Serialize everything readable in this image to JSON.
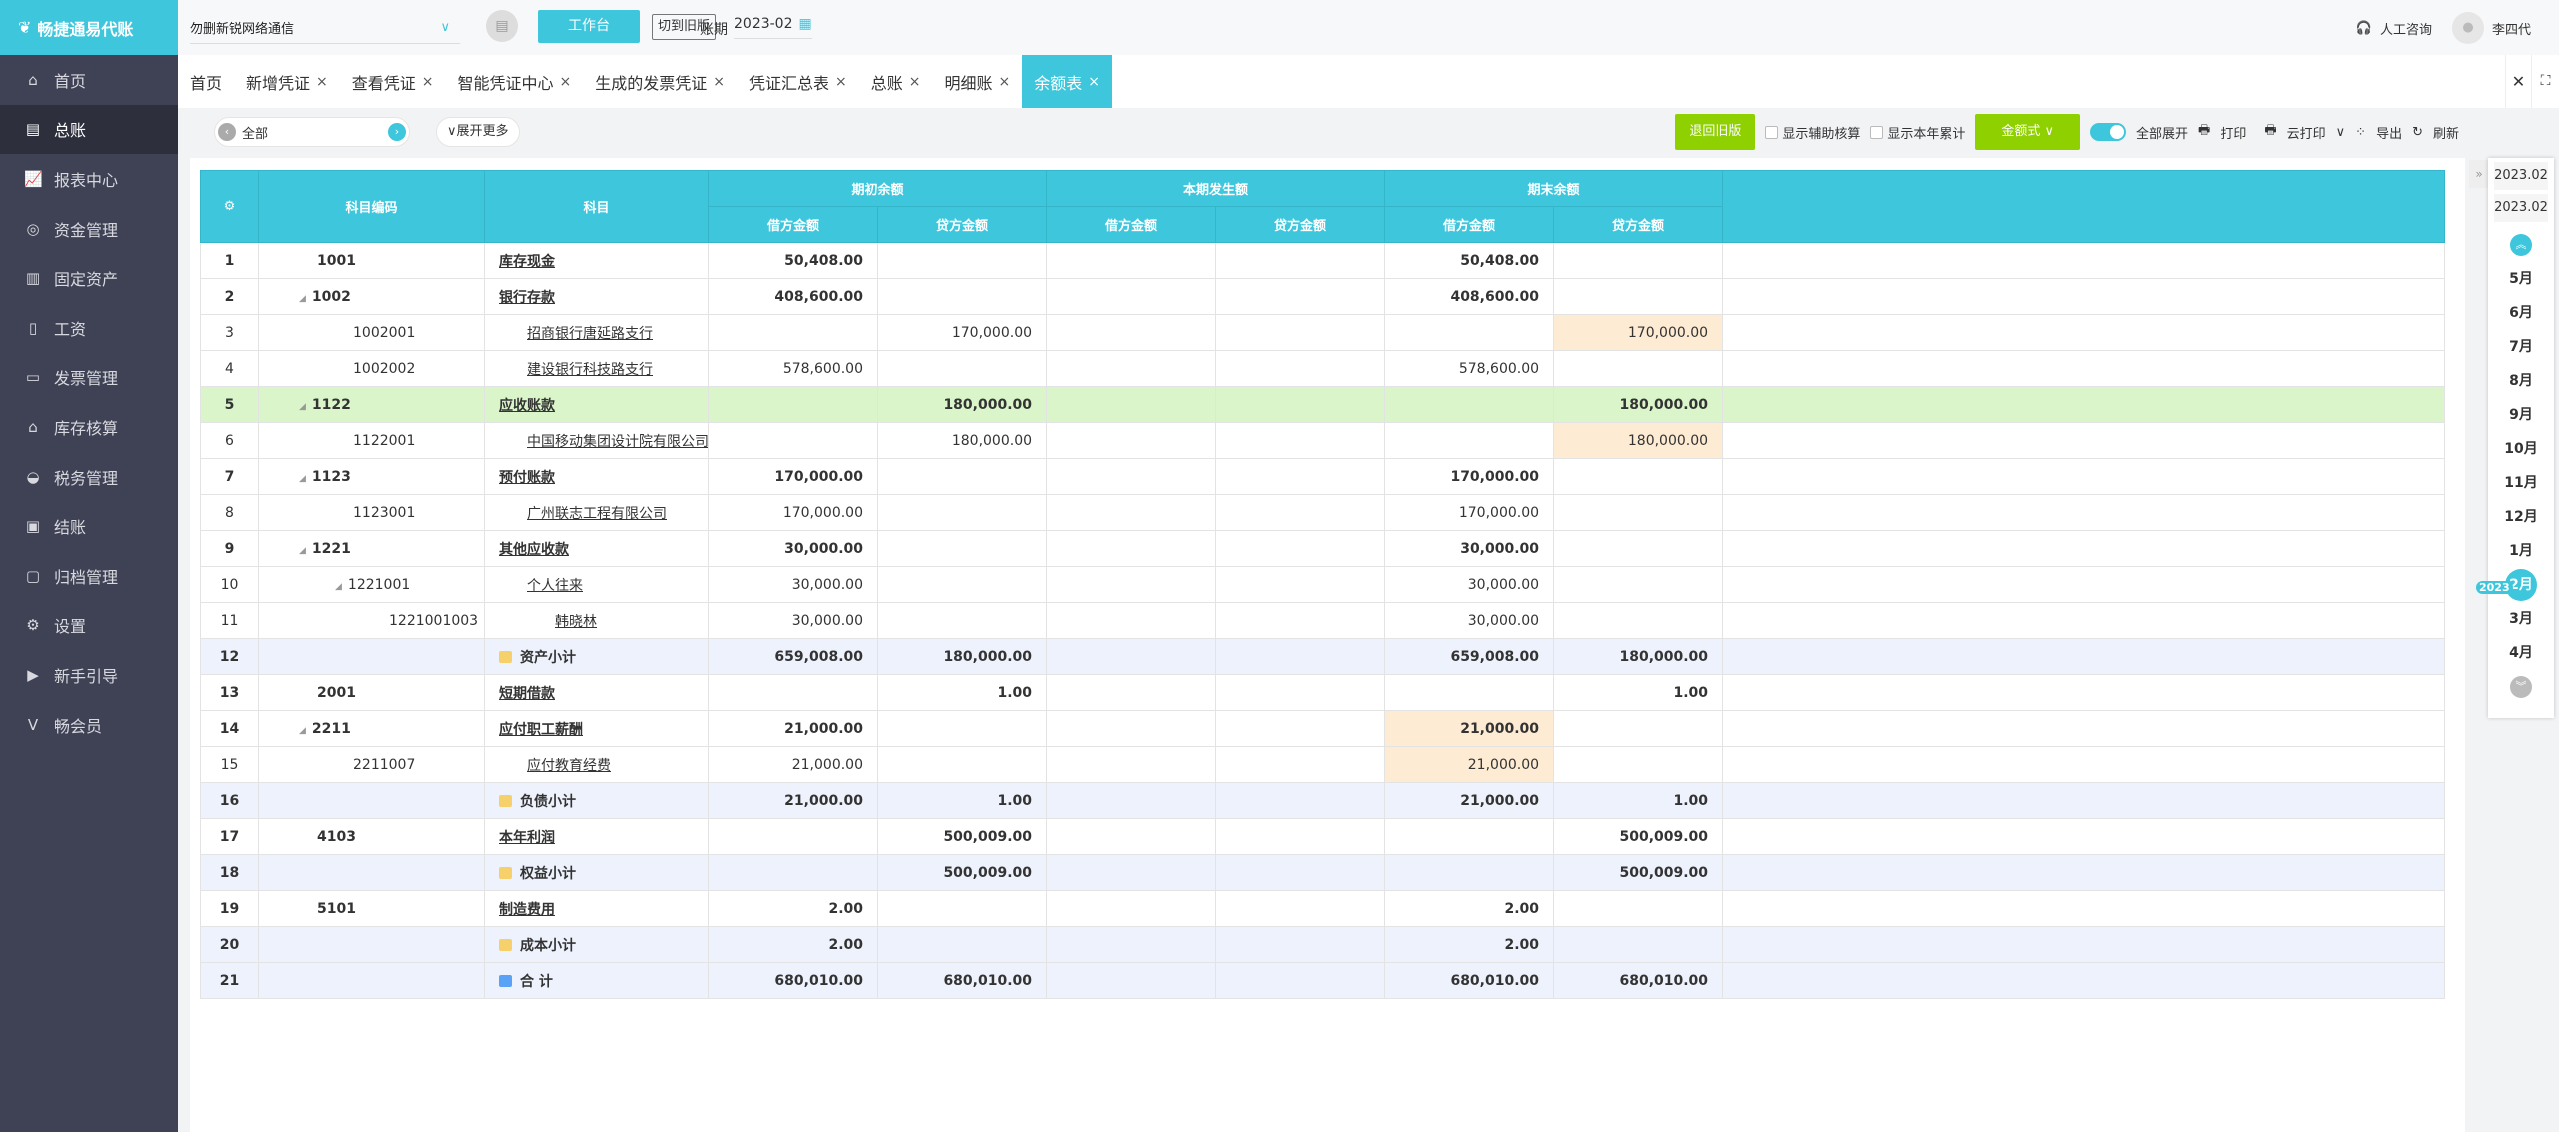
{
  "app": {
    "logo_text": "畅捷通易代账"
  },
  "sidebar": {
    "items": [
      {
        "label": "首页",
        "icon": "home-icon",
        "glyph": "⌂"
      },
      {
        "label": "总账",
        "icon": "ledger-icon",
        "glyph": "▤",
        "active": true
      },
      {
        "label": "报表中心",
        "icon": "chart-icon",
        "glyph": "📈"
      },
      {
        "label": "资金管理",
        "icon": "money-icon",
        "glyph": "◎"
      },
      {
        "label": "固定资产",
        "icon": "asset-icon",
        "glyph": "▥"
      },
      {
        "label": "工资",
        "icon": "salary-icon",
        "glyph": "▯"
      },
      {
        "label": "发票管理",
        "icon": "invoice-icon",
        "glyph": "▭"
      },
      {
        "label": "库存核算",
        "icon": "inventory-icon",
        "glyph": "⌂"
      },
      {
        "label": "税务管理",
        "icon": "tax-icon",
        "glyph": "◒"
      },
      {
        "label": "结账",
        "icon": "close-books-icon",
        "glyph": "▣"
      },
      {
        "label": "归档管理",
        "icon": "archive-icon",
        "glyph": "▢"
      },
      {
        "label": "设置",
        "icon": "settings-icon",
        "glyph": "⚙"
      },
      {
        "label": "新手引导",
        "icon": "guide-icon",
        "glyph": "▶"
      },
      {
        "label": "畅会员",
        "icon": "vip-icon",
        "glyph": "V"
      }
    ]
  },
  "topbar": {
    "company": "勿删新锐网络通信",
    "workbench": "工作台",
    "switch_old": "切到旧版",
    "period_label": "账期",
    "period_value": "2023-02",
    "consult": "人工咨询",
    "user": "李四代"
  },
  "tabs": [
    {
      "label": "首页",
      "closable": false
    },
    {
      "label": "新增凭证",
      "closable": true
    },
    {
      "label": "查看凭证",
      "closable": true
    },
    {
      "label": "智能凭证中心",
      "closable": true
    },
    {
      "label": "生成的发票凭证",
      "closable": true
    },
    {
      "label": "凭证汇总表",
      "closable": true
    },
    {
      "label": "总账",
      "closable": true
    },
    {
      "label": "明细账",
      "closable": true
    },
    {
      "label": "余额表",
      "closable": true,
      "active": true
    }
  ],
  "toolbar": {
    "scope": "全部",
    "expand_more": "展开更多",
    "back_old": "退回旧版",
    "show_aux": "显示辅助核算",
    "show_ytd": "显示本年累计",
    "amount_format": "金额式",
    "expand_all": "全部展开",
    "print": "打印",
    "cloud_print": "云打印",
    "export": "导出",
    "refresh": "刷新"
  },
  "table": {
    "headers": {
      "code": "科目编码",
      "subject": "科目",
      "opening": "期初余额",
      "period": "本期发生额",
      "closing": "期末余额",
      "debit": "借方金额",
      "credit": "贷方金额"
    },
    "rows": [
      {
        "n": "1",
        "code": "1001",
        "subject": "库存现金",
        "level": 0,
        "v": [
          "50,408.00",
          "",
          "",
          "",
          "50,408.00",
          ""
        ],
        "type": "bold"
      },
      {
        "n": "2",
        "code": "1002",
        "subject": "银行存款",
        "level": 0,
        "tree": true,
        "v": [
          "408,600.00",
          "",
          "",
          "",
          "408,600.00",
          ""
        ],
        "type": "bold"
      },
      {
        "n": "3",
        "code": "1002001",
        "subject": "招商银行唐延路支行",
        "level": 1,
        "v": [
          "",
          "170,000.00",
          "",
          "",
          "",
          "170,000.00"
        ],
        "orange": 5
      },
      {
        "n": "4",
        "code": "1002002",
        "subject": "建设银行科技路支行",
        "level": 1,
        "v": [
          "578,600.00",
          "",
          "",
          "",
          "578,600.00",
          ""
        ]
      },
      {
        "n": "5",
        "code": "1122",
        "subject": "应收账款",
        "level": 0,
        "tree": true,
        "v": [
          "",
          "180,000.00",
          "",
          "",
          "",
          "180,000.00"
        ],
        "type": "bold",
        "highlight": true,
        "orange": 5
      },
      {
        "n": "6",
        "code": "1122001",
        "subject": "中国移动集团设计院有限公司陕西",
        "level": 1,
        "v": [
          "",
          "180,000.00",
          "",
          "",
          "",
          "180,000.00"
        ],
        "orange": 5
      },
      {
        "n": "7",
        "code": "1123",
        "subject": "预付账款",
        "level": 0,
        "tree": true,
        "v": [
          "170,000.00",
          "",
          "",
          "",
          "170,000.00",
          ""
        ],
        "type": "bold"
      },
      {
        "n": "8",
        "code": "1123001",
        "subject": "广州联志工程有限公司",
        "level": 1,
        "v": [
          "170,000.00",
          "",
          "",
          "",
          "170,000.00",
          ""
        ]
      },
      {
        "n": "9",
        "code": "1221",
        "subject": "其他应收款",
        "level": 0,
        "tree": true,
        "v": [
          "30,000.00",
          "",
          "",
          "",
          "30,000.00",
          ""
        ],
        "type": "bold"
      },
      {
        "n": "10",
        "code": "1221001",
        "subject": "个人往来",
        "level": 1,
        "tree": true,
        "v": [
          "30,000.00",
          "",
          "",
          "",
          "30,000.00",
          ""
        ]
      },
      {
        "n": "11",
        "code": "1221001003",
        "subject": "韩晓林",
        "level": 2,
        "v": [
          "30,000.00",
          "",
          "",
          "",
          "30,000.00",
          ""
        ]
      },
      {
        "n": "12",
        "code": "",
        "subject": "资产小计",
        "v": [
          "659,008.00",
          "180,000.00",
          "",
          "",
          "659,008.00",
          "180,000.00"
        ],
        "type": "sub"
      },
      {
        "n": "13",
        "code": "2001",
        "subject": "短期借款",
        "level": 0,
        "v": [
          "",
          "1.00",
          "",
          "",
          "",
          "1.00"
        ],
        "type": "bold"
      },
      {
        "n": "14",
        "code": "2211",
        "subject": "应付职工薪酬",
        "level": 0,
        "tree": true,
        "v": [
          "21,000.00",
          "",
          "",
          "",
          "21,000.00",
          ""
        ],
        "type": "bold",
        "orange": 4
      },
      {
        "n": "15",
        "code": "2211007",
        "subject": "应付教育经费",
        "level": 1,
        "v": [
          "21,000.00",
          "",
          "",
          "",
          "21,000.00",
          ""
        ],
        "orange": 4
      },
      {
        "n": "16",
        "code": "",
        "subject": "负债小计",
        "v": [
          "21,000.00",
          "1.00",
          "",
          "",
          "21,000.00",
          "1.00"
        ],
        "type": "sub"
      },
      {
        "n": "17",
        "code": "4103",
        "subject": "本年利润",
        "level": 0,
        "v": [
          "",
          "500,009.00",
          "",
          "",
          "",
          "500,009.00"
        ],
        "type": "bold"
      },
      {
        "n": "18",
        "code": "",
        "subject": "权益小计",
        "v": [
          "",
          "500,009.00",
          "",
          "",
          "",
          "500,009.00"
        ],
        "type": "sub"
      },
      {
        "n": "19",
        "code": "5101",
        "subject": "制造费用",
        "level": 0,
        "v": [
          "2.00",
          "",
          "",
          "",
          "2.00",
          ""
        ],
        "type": "bold"
      },
      {
        "n": "20",
        "code": "",
        "subject": "成本小计",
        "v": [
          "2.00",
          "",
          "",
          "",
          "2.00",
          ""
        ],
        "type": "sub"
      },
      {
        "n": "21",
        "code": "",
        "subject": "合 计",
        "v": [
          "680,010.00",
          "680,010.00",
          "",
          "",
          "680,010.00",
          "680,010.00"
        ],
        "type": "sub",
        "total": true
      }
    ]
  },
  "date_panel": {
    "from": "2023.02",
    "to": "2023.02",
    "year_tag": "2023",
    "months": [
      "5月",
      "6月",
      "7月",
      "8月",
      "9月",
      "10月",
      "11月",
      "12月",
      "1月",
      "2月",
      "3月",
      "4月"
    ],
    "selected": "2月"
  },
  "colors": {
    "accent": "#3ec6dc",
    "green": "#8fd000",
    "sidebar": "#3f4254",
    "highlight_row": "#d9f5c9",
    "highlight_cell": "#fdebd3",
    "subtotal_row": "#eef2fd"
  }
}
